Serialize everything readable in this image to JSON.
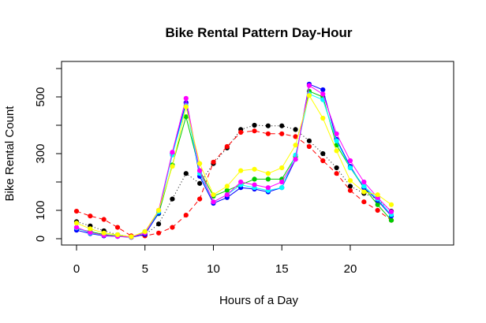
{
  "chart_data": {
    "type": "line",
    "title": "Bike Rental Pattern Day-Hour",
    "xlabel": "Hours of a Day",
    "ylabel": "Bike Rental Count",
    "xlim": [
      0,
      23
    ],
    "ylim": [
      0,
      500
    ],
    "xticks": [
      0,
      5,
      10,
      15,
      20
    ],
    "yticks": [
      0,
      100,
      300,
      500
    ],
    "grid": false,
    "legend": "none",
    "x": [
      0,
      1,
      2,
      3,
      4,
      5,
      6,
      7,
      8,
      9,
      10,
      11,
      12,
      13,
      14,
      15,
      16,
      17,
      18,
      19,
      20,
      21,
      22,
      23
    ],
    "series": [
      {
        "color": "#000000",
        "lty": "dotted",
        "values": [
          60,
          45,
          28,
          14,
          7,
          14,
          52,
          140,
          230,
          195,
          265,
          320,
          385,
          400,
          398,
          398,
          385,
          345,
          300,
          250,
          185,
          160,
          140,
          97
        ]
      },
      {
        "color": "#ff0000",
        "lty": "dashed",
        "values": [
          97,
          80,
          68,
          40,
          10,
          10,
          20,
          40,
          83,
          140,
          270,
          325,
          375,
          380,
          370,
          370,
          360,
          325,
          275,
          230,
          170,
          130,
          100,
          65
        ]
      },
      {
        "color": "#00cc00",
        "lty": "solid",
        "values": [
          35,
          25,
          15,
          10,
          5,
          25,
          88,
          260,
          430,
          240,
          150,
          170,
          190,
          210,
          210,
          210,
          290,
          520,
          500,
          330,
          250,
          180,
          120,
          65
        ]
      },
      {
        "color": "#0000ff",
        "lty": "solid",
        "values": [
          30,
          18,
          10,
          8,
          5,
          15,
          90,
          300,
          480,
          220,
          125,
          145,
          180,
          175,
          165,
          180,
          280,
          545,
          525,
          350,
          255,
          180,
          135,
          80
        ]
      },
      {
        "color": "#00ffff",
        "lty": "solid",
        "values": [
          38,
          20,
          12,
          8,
          6,
          20,
          95,
          295,
          470,
          230,
          130,
          155,
          190,
          180,
          170,
          180,
          295,
          510,
          490,
          345,
          250,
          185,
          140,
          85
        ]
      },
      {
        "color": "#ff00ff",
        "lty": "solid",
        "values": [
          40,
          22,
          12,
          8,
          6,
          20,
          100,
          305,
          495,
          240,
          130,
          155,
          200,
          190,
          180,
          200,
          280,
          540,
          510,
          370,
          275,
          200,
          145,
          95
        ]
      },
      {
        "color": "#ffff00",
        "lty": "solid",
        "values": [
          55,
          35,
          20,
          14,
          7,
          25,
          100,
          255,
          465,
          265,
          155,
          185,
          240,
          245,
          230,
          250,
          330,
          505,
          425,
          310,
          205,
          165,
          155,
          120
        ]
      }
    ]
  }
}
